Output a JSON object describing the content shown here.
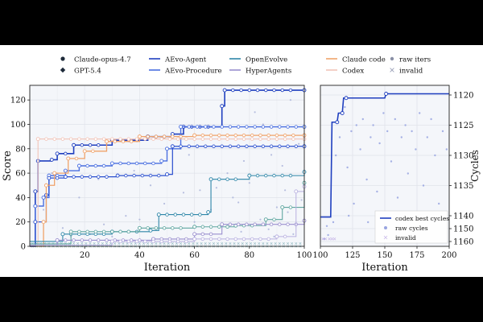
{
  "legend": {
    "models": [
      {
        "label": "Claude-opus-4.7",
        "marker": "circle"
      },
      {
        "label": "GPT-5.4",
        "marker": "diamond"
      }
    ],
    "methods": [
      {
        "label": "AEvo-Agent",
        "color": "#1f3fbf"
      },
      {
        "label": "AEvo-Procedure",
        "color": "#4a6fe0"
      },
      {
        "label": "OpenEvolve",
        "color": "#2e86a8"
      },
      {
        "label": "HyperAgents",
        "color": "#9a8fcf"
      },
      {
        "label": "Claude code",
        "color": "#f0a36a"
      },
      {
        "label": "Codex",
        "color": "#f2c4b8"
      }
    ],
    "markers": [
      {
        "label": "raw iters",
        "marker": "dot"
      },
      {
        "label": "invalid",
        "marker": "x"
      }
    ]
  },
  "chart_data": [
    {
      "type": "line",
      "xlabel": "Iteration",
      "ylabel": "Score",
      "xlim": [
        0,
        100
      ],
      "ylim": [
        0,
        132
      ],
      "xticks": [
        20,
        40,
        60,
        80,
        100
      ],
      "yticks": [
        0,
        20,
        40,
        60,
        80,
        100,
        120
      ],
      "grid": true,
      "step": true,
      "series": [
        {
          "name": "AEvo-Agent",
          "color": "#1f3fbf",
          "width": 1.6,
          "points": [
            [
              0,
              0
            ],
            [
              2,
              45
            ],
            [
              3,
              70
            ],
            [
              8,
              71
            ],
            [
              10,
              76
            ],
            [
              16,
              83
            ],
            [
              30,
              87
            ],
            [
              43,
              90
            ],
            [
              52,
              92
            ],
            [
              56,
              98
            ],
            [
              70,
              115
            ],
            [
              71,
              128
            ],
            [
              100,
              128
            ]
          ]
        },
        {
          "name": "AEvo-Procedure",
          "color": "#4a6fe0",
          "width": 1.4,
          "points": [
            [
              0,
              0
            ],
            [
              2,
              33
            ],
            [
              5,
              40
            ],
            [
              7,
              58
            ],
            [
              13,
              62
            ],
            [
              18,
              66
            ],
            [
              30,
              68
            ],
            [
              48,
              70
            ],
            [
              50,
              80
            ],
            [
              55,
              98
            ],
            [
              100,
              98
            ]
          ]
        },
        {
          "name": "AEvo-Agent",
          "color": "#2a4fcf",
          "width": 1.2,
          "points": [
            [
              0,
              0
            ],
            [
              2,
              20
            ],
            [
              6,
              42
            ],
            [
              7,
              56
            ],
            [
              13,
              57
            ],
            [
              32,
              58
            ],
            [
              50,
              59
            ],
            [
              52,
              82
            ],
            [
              100,
              82
            ]
          ]
        },
        {
          "name": "Claude code",
          "color": "#f0a36a",
          "width": 1.3,
          "points": [
            [
              0,
              0
            ],
            [
              5,
              20
            ],
            [
              6,
              50
            ],
            [
              9,
              60
            ],
            [
              14,
              72
            ],
            [
              20,
              78
            ],
            [
              28,
              86
            ],
            [
              40,
              90
            ],
            [
              60,
              91
            ],
            [
              100,
              91
            ]
          ]
        },
        {
          "name": "Codex",
          "color": "#f2c4b8",
          "width": 1.1,
          "points": [
            [
              0,
              0
            ],
            [
              3,
              88
            ],
            [
              100,
              88
            ]
          ]
        },
        {
          "name": "OpenEvolve",
          "color": "#2e86a8",
          "width": 1.1,
          "points": [
            [
              0,
              4
            ],
            [
              12,
              10
            ],
            [
              30,
              12
            ],
            [
              44,
              13
            ],
            [
              47,
              26
            ],
            [
              65,
              28
            ],
            [
              66,
              55
            ],
            [
              80,
              58
            ],
            [
              100,
              61
            ]
          ]
        },
        {
          "name": "OpenEvolve",
          "color": "#5fa6a0",
          "width": 1.1,
          "points": [
            [
              0,
              2
            ],
            [
              15,
              12
            ],
            [
              40,
              15
            ],
            [
              60,
              16
            ],
            [
              75,
              17
            ],
            [
              86,
              22
            ],
            [
              92,
              32
            ],
            [
              100,
              52
            ]
          ]
        },
        {
          "name": "HyperAgents",
          "color": "#9a8fcf",
          "width": 1.1,
          "points": [
            [
              0,
              1
            ],
            [
              10,
              5
            ],
            [
              45,
              6
            ],
            [
              60,
              10
            ],
            [
              70,
              18
            ],
            [
              100,
              21
            ]
          ]
        },
        {
          "name": "HyperAgents",
          "color": "#b8b0e0",
          "width": 1.0,
          "points": [
            [
              0,
              1
            ],
            [
              30,
              4
            ],
            [
              60,
              6
            ],
            [
              90,
              8
            ],
            [
              97,
              45
            ],
            [
              100,
              49
            ]
          ]
        }
      ],
      "raw_iters": [
        [
          5,
          30
        ],
        [
          8,
          60
        ],
        [
          12,
          15
        ],
        [
          18,
          40
        ],
        [
          22,
          10
        ],
        [
          25,
          55
        ],
        [
          30,
          8
        ],
        [
          35,
          25
        ],
        [
          38,
          62
        ],
        [
          45,
          5
        ],
        [
          49,
          35
        ],
        [
          52,
          15
        ],
        [
          56,
          44
        ],
        [
          60,
          20
        ],
        [
          63,
          10
        ],
        [
          66,
          30
        ],
        [
          70,
          18
        ],
        [
          74,
          40
        ],
        [
          77,
          12
        ],
        [
          80,
          52
        ],
        [
          84,
          22
        ],
        [
          87,
          14
        ],
        [
          90,
          32
        ],
        [
          93,
          46
        ],
        [
          96,
          10
        ],
        [
          99,
          38
        ],
        [
          55,
          80
        ],
        [
          58,
          75
        ],
        [
          72,
          60
        ],
        [
          78,
          70
        ],
        [
          82,
          110
        ],
        [
          85,
          100
        ],
        [
          88,
          75
        ],
        [
          92,
          66
        ],
        [
          95,
          120
        ],
        [
          98,
          84
        ],
        [
          62,
          46
        ],
        [
          44,
          50
        ],
        [
          40,
          22
        ],
        [
          27,
          18
        ],
        [
          15,
          8
        ],
        [
          68,
          48
        ],
        [
          76,
          36
        ],
        [
          86,
          58
        ],
        [
          94,
          28
        ],
        [
          89,
          8
        ]
      ],
      "invalid_y": [
        0,
        1
      ]
    },
    {
      "type": "line",
      "xlabel": "Iteration",
      "ylabel": "Cycles",
      "xlim": [
        100,
        200
      ],
      "ylim": [
        1161,
        1119
      ],
      "xticks": [
        100,
        125,
        150,
        175,
        200
      ],
      "yticks": [
        1120,
        1125,
        1130,
        1135,
        1140,
        1145,
        1150,
        1155,
        1160
      ],
      "ytick_labels": [
        "1120",
        "1125",
        "1130",
        "1135",
        "1140",
        "1150",
        "1160"
      ],
      "ytick_values": [
        1120,
        1125,
        1130,
        1135,
        1140,
        1150,
        1160
      ],
      "grid": true,
      "step": true,
      "series": [
        {
          "name": "codex best cycles",
          "color": "#1f3fbf",
          "width": 1.6,
          "points": [
            [
              100,
              1141
            ],
            [
              108,
              1141
            ],
            [
              109,
              1124.5
            ],
            [
              113,
              1124.5
            ],
            [
              114,
              1123
            ],
            [
              117,
              1123
            ],
            [
              118,
              1120.5
            ],
            [
              150,
              1120.5
            ],
            [
              151,
              1119.8
            ],
            [
              200,
              1119.8
            ]
          ]
        }
      ],
      "raw_cycles": [
        [
          103,
          1158
        ],
        [
          106,
          1155
        ],
        [
          110,
          1145
        ],
        [
          112,
          1130
        ],
        [
          115,
          1127
        ],
        [
          119,
          1122
        ],
        [
          121,
          1132
        ],
        [
          124,
          1126
        ],
        [
          126,
          1138
        ],
        [
          128,
          1125
        ],
        [
          131,
          1129
        ],
        [
          133,
          1124
        ],
        [
          136,
          1134
        ],
        [
          139,
          1127
        ],
        [
          141,
          1125
        ],
        [
          144,
          1136
        ],
        [
          146,
          1128
        ],
        [
          149,
          1123
        ],
        [
          152,
          1126
        ],
        [
          155,
          1131
        ],
        [
          158,
          1124
        ],
        [
          160,
          1137
        ],
        [
          163,
          1127
        ],
        [
          166,
          1125
        ],
        [
          168,
          1133
        ],
        [
          171,
          1126
        ],
        [
          174,
          1129
        ],
        [
          177,
          1123
        ],
        [
          180,
          1135
        ],
        [
          183,
          1127
        ],
        [
          186,
          1124
        ],
        [
          189,
          1130
        ],
        [
          192,
          1138
        ],
        [
          195,
          1126
        ],
        [
          198,
          1129
        ],
        [
          105,
          1148
        ],
        [
          122,
          1140
        ],
        [
          137,
          1145
        ],
        [
          157,
          1142
        ],
        [
          172,
          1141
        ],
        [
          188,
          1144
        ]
      ],
      "invalid_x": [
        102,
        104,
        107,
        109,
        111
      ],
      "legend": [
        "codex best cycles",
        "raw cycles",
        "invalid"
      ],
      "legend_position": "lower-right"
    }
  ]
}
